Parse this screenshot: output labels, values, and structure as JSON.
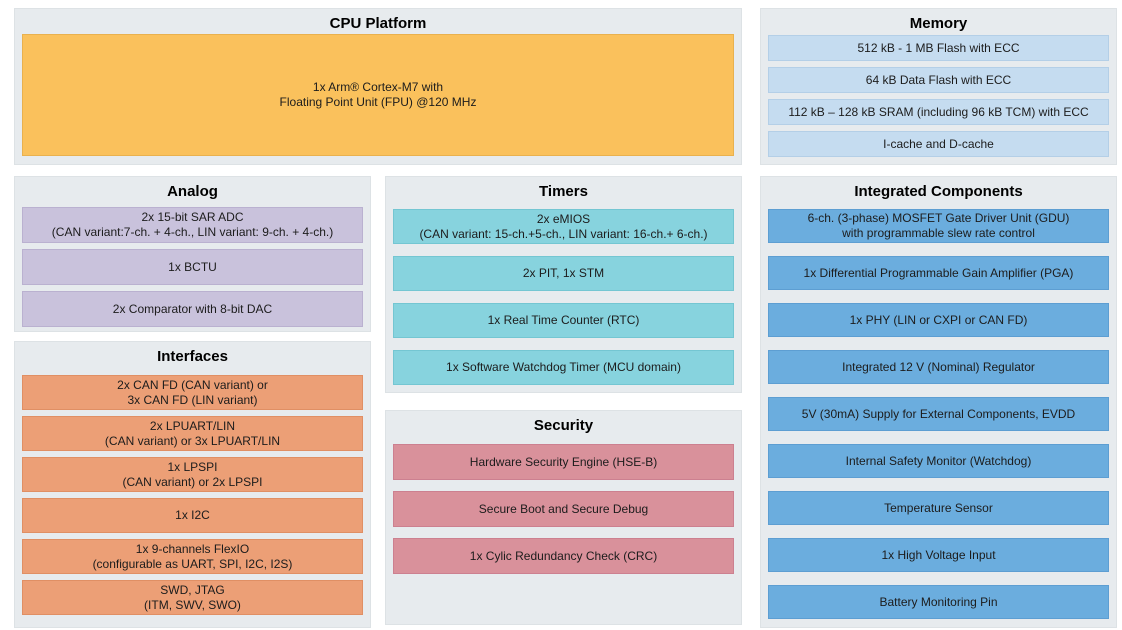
{
  "colors": {
    "page_bg": "#ffffff",
    "panel_bg": "#e7ebee",
    "cpu": "#fac15c",
    "memory": "#c5dcf0",
    "analog": "#c9c2dc",
    "interfaces": "#ec9f76",
    "timers": "#87d3de",
    "security": "#d9919b",
    "integrated": "#6badde",
    "text": "#1c1c1c",
    "title_text": "#000000"
  },
  "sections": {
    "cpu_platform": {
      "title": "CPU Platform",
      "blocks": [
        {
          "lines": [
            "1x Arm® Cortex-M7 with",
            "Floating Point Unit (FPU) @120 MHz"
          ]
        }
      ]
    },
    "memory": {
      "title": "Memory",
      "blocks": [
        {
          "lines": [
            "512 kB - 1 MB Flash with ECC"
          ]
        },
        {
          "lines": [
            "64 kB Data Flash with ECC"
          ]
        },
        {
          "lines": [
            "112 kB – 128 kB SRAM (including 96 kB TCM) with ECC"
          ]
        },
        {
          "lines": [
            "I-cache and D-cache"
          ]
        }
      ]
    },
    "analog": {
      "title": "Analog",
      "blocks": [
        {
          "lines": [
            "2x 15-bit SAR ADC",
            "(CAN variant:7-ch. + 4-ch., LIN variant: 9-ch. + 4-ch.)"
          ]
        },
        {
          "lines": [
            "1x BCTU"
          ]
        },
        {
          "lines": [
            "2x Comparator with 8-bit DAC"
          ]
        }
      ]
    },
    "interfaces": {
      "title": "Interfaces",
      "blocks": [
        {
          "lines": [
            "2x CAN FD (CAN variant) or",
            "3x CAN FD (LIN variant)"
          ]
        },
        {
          "lines": [
            "2x LPUART/LIN",
            "(CAN variant) or 3x LPUART/LIN"
          ]
        },
        {
          "lines": [
            "1x LPSPI",
            "(CAN variant) or 2x LPSPI"
          ]
        },
        {
          "lines": [
            "1x I2C"
          ]
        },
        {
          "lines": [
            "1x 9-channels FlexIO",
            "(configurable as UART, SPI, I2C, I2S)"
          ]
        },
        {
          "lines": [
            "SWD, JTAG",
            "(ITM, SWV, SWO)"
          ]
        }
      ]
    },
    "timers": {
      "title": "Timers",
      "blocks": [
        {
          "lines": [
            "2x eMIOS",
            "(CAN variant: 15-ch.+5-ch., LIN variant: 16-ch.+ 6-ch.)"
          ]
        },
        {
          "lines": [
            "2x PIT, 1x STM"
          ]
        },
        {
          "lines": [
            "1x Real Time Counter (RTC)"
          ]
        },
        {
          "lines": [
            "1x Software Watchdog Timer (MCU domain)"
          ]
        }
      ]
    },
    "security": {
      "title": "Security",
      "blocks": [
        {
          "lines": [
            "Hardware Security Engine (HSE-B)"
          ]
        },
        {
          "lines": [
            "Secure Boot and Secure Debug"
          ]
        },
        {
          "lines": [
            "1x Cylic Redundancy Check (CRC)"
          ]
        }
      ]
    },
    "integrated_components": {
      "title": "Integrated Components",
      "blocks": [
        {
          "lines": [
            "6-ch. (3-phase) MOSFET Gate Driver Unit (GDU)",
            "with programmable slew rate control"
          ]
        },
        {
          "lines": [
            "1x Differential Programmable Gain Amplifier (PGA)"
          ]
        },
        {
          "lines": [
            "1x PHY (LIN or CXPI or CAN FD)"
          ]
        },
        {
          "lines": [
            "Integrated 12 V (Nominal) Regulator"
          ]
        },
        {
          "lines": [
            "5V (30mA) Supply for External Components, EVDD"
          ]
        },
        {
          "lines": [
            "Internal Safety Monitor (Watchdog)"
          ]
        },
        {
          "lines": [
            "Temperature Sensor"
          ]
        },
        {
          "lines": [
            "1x High Voltage Input"
          ]
        },
        {
          "lines": [
            "Battery Monitoring Pin"
          ]
        }
      ]
    }
  }
}
